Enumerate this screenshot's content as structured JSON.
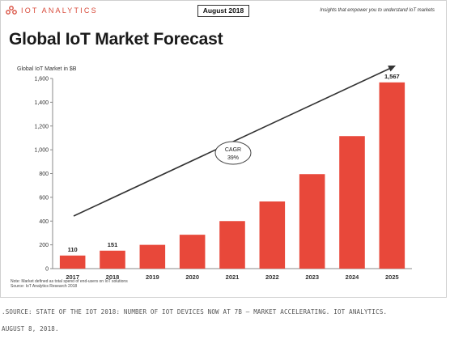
{
  "header": {
    "brand_name": "IOT ANALYTICS",
    "date_badge": "August 2018",
    "tagline": "Insights that empower you to understand IoT markets"
  },
  "title": "Global IoT Market Forecast",
  "colors": {
    "bar": "#e8483a",
    "accent": "#d84a3a",
    "arrow": "#333333"
  },
  "notes": [
    "Note: Market defined as total spend of end-users on IoT solutions",
    "Source: IoT Analytics Research 2018"
  ],
  "caption": {
    "line1": ".SOURCE: STATE OF THE IOT 2018: NUMBER OF IOT DEVICES NOW AT 7B – MARKET ACCELERATING. IOT ANALYTICS.",
    "line2": "AUGUST 8, 2018."
  },
  "chart_data": {
    "type": "bar",
    "title": "Global IoT Market Forecast",
    "ylabel": "Global IoT Market in $B",
    "xlabel": "",
    "categories": [
      "2017",
      "2018",
      "2019",
      "2020",
      "2021",
      "2022",
      "2023",
      "2024",
      "2025"
    ],
    "values": [
      110,
      151,
      200,
      285,
      400,
      565,
      795,
      1115,
      1567
    ],
    "data_labels": [
      "110",
      "151",
      "",
      "",
      "",
      "",
      "",
      "",
      "1,567"
    ],
    "ylim": [
      0,
      1600
    ],
    "yticks": [
      0,
      200,
      400,
      600,
      800,
      1000,
      1200,
      1400,
      1600
    ],
    "ytick_labels": [
      "0",
      "200",
      "400",
      "600",
      "800",
      "1,000",
      "1,200",
      "1,400",
      "1,600"
    ],
    "grid": false,
    "legend": "none",
    "annotation": {
      "line1": "CAGR",
      "line2": "39%"
    }
  }
}
